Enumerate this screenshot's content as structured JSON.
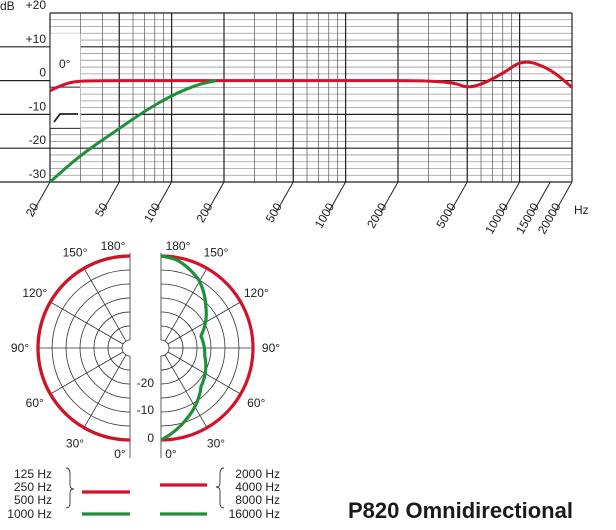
{
  "colors": {
    "red": "#d5112a",
    "green": "#1f8f3a",
    "grid": "#222222",
    "minor_grid": "#9a9a9a"
  },
  "title": "P820 Omnidirectional",
  "chart_data": [
    {
      "type": "line",
      "xscale": "log",
      "xlabel": "Hz",
      "ylabel": "dB",
      "xlim": [
        20,
        20000
      ],
      "ylim": [
        -30,
        20
      ],
      "grid": true,
      "yticks": [
        "+20",
        "+10",
        "0",
        "-10",
        "-20",
        "-30"
      ],
      "ytick_values": [
        20,
        10,
        0,
        -10,
        -20,
        -30
      ],
      "xticks": [
        20,
        50,
        100,
        200,
        500,
        1000,
        2000,
        5000,
        10000,
        15000,
        20000
      ],
      "xtick_labels": [
        "20",
        "50",
        "100",
        "200",
        "500",
        "1000",
        "2000",
        "5000",
        "10000",
        "15000",
        "20000"
      ],
      "legend_box": {
        "angle_label": "0°",
        "icon": "low-cut-filter-icon"
      },
      "series": [
        {
          "color": "red",
          "x": [
            20,
            23,
            27,
            35,
            100,
            1000,
            4000,
            5200,
            8000,
            10500,
            15000,
            20000
          ],
          "y": [
            -3,
            -1.5,
            -0.3,
            0,
            0,
            0,
            0,
            -2.7,
            2,
            6.3,
            3.5,
            -2
          ]
        },
        {
          "color": "green",
          "x": [
            20,
            30,
            50,
            70,
            100,
            140,
            180
          ],
          "y": [
            -30,
            -22,
            -14.2,
            -9,
            -4.4,
            -1.2,
            0
          ]
        }
      ]
    },
    {
      "type": "polar",
      "zero_direction": "bottom",
      "angle_labels": [
        "180°",
        "150°",
        "120°",
        "90°",
        "60°",
        "30°",
        "0°"
      ],
      "db_labels": [
        "-20",
        "-10",
        "0"
      ],
      "rlim": [
        -30,
        0
      ],
      "left": {
        "legend": [
          "125 Hz",
          "250 Hz",
          "500 Hz",
          "1000 Hz"
        ],
        "series": [
          {
            "color": "red",
            "frequencies": [
              "125 Hz",
              "250 Hz",
              "500 Hz"
            ],
            "angles": [
              0,
              30,
              60,
              90,
              120,
              150,
              180
            ],
            "db": [
              0,
              0,
              0,
              0,
              0,
              0,
              0
            ]
          },
          {
            "color": "green",
            "frequencies": [
              "1000 Hz"
            ],
            "angles": [
              0,
              30,
              60,
              90,
              120,
              150,
              180
            ],
            "db": [
              0,
              0,
              0,
              0,
              0,
              0,
              0
            ]
          }
        ]
      },
      "right": {
        "legend": [
          "2000 Hz",
          "4000 Hz",
          "8000 Hz",
          "16000 Hz"
        ],
        "series": [
          {
            "color": "red",
            "frequencies": [
              "2000 Hz",
              "4000 Hz",
              "8000 Hz"
            ],
            "angles": [
              0,
              30,
              60,
              90,
              120,
              150,
              180
            ],
            "db": [
              0,
              0,
              0,
              0,
              0,
              0,
              0
            ]
          },
          {
            "color": "green",
            "frequencies": [
              "16000 Hz"
            ],
            "angles": [
              0,
              19,
              46,
              80,
              107,
              133,
              151,
              169,
              180
            ],
            "db": [
              0,
              -5.7,
              -13,
              -17,
              -18,
              -11,
              -5,
              -1,
              0
            ]
          }
        ]
      }
    }
  ]
}
